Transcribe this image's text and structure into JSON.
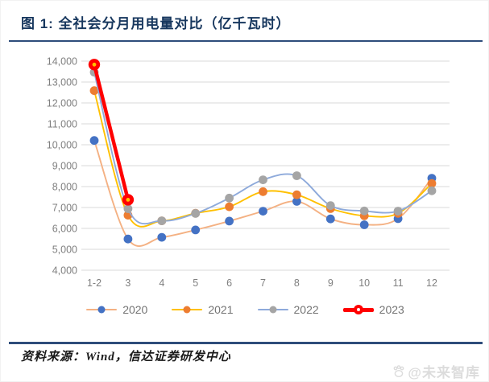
{
  "figure": {
    "title": "图 1:  全社会分月用电量对比（亿千瓦时）",
    "source": "资料来源：Wind，信达证券研发中心",
    "watermark": "@未来智库"
  },
  "colors": {
    "title_navy": "#17375E",
    "rule_navy": "#2E4D7B",
    "grid": "#D9D9D9",
    "axis_text": "#7F7F7F",
    "legend_text": "#737373",
    "watermark_gray": "#DCDCDC",
    "red_marker_core": "#FFC000"
  },
  "chart_data": {
    "type": "line",
    "title": "全社会分月用电量对比（亿千瓦时）",
    "xlabel": "",
    "ylabel": "",
    "categories": [
      "1-2",
      "3",
      "4",
      "5",
      "6",
      "7",
      "8",
      "9",
      "10",
      "11",
      "12"
    ],
    "series": [
      {
        "name": "2020",
        "marker_color": "#4472C4",
        "line_color": "#F4B183",
        "thick": false,
        "values": [
          10203,
          5493,
          5572,
          5926,
          6350,
          6824,
          7294,
          6454,
          6172,
          6467,
          8400
        ]
      },
      {
        "name": "2021",
        "marker_color": "#ED7D31",
        "line_color": "#FFC000",
        "thick": false,
        "values": [
          12588,
          6631,
          6361,
          6724,
          7033,
          7758,
          7607,
          6947,
          6603,
          6718,
          8150
        ]
      },
      {
        "name": "2022",
        "marker_color": "#A5A5A5",
        "line_color": "#8EAADB",
        "thick": false,
        "values": [
          13468,
          6944,
          6362,
          6716,
          7451,
          8324,
          8520,
          7092,
          6834,
          6828,
          7800
        ]
      },
      {
        "name": "2023",
        "marker_color": "#FF0000",
        "line_color": "#FF0000",
        "thick": true,
        "values": [
          13834,
          7369,
          null,
          null,
          null,
          null,
          null,
          null,
          null,
          null,
          null
        ]
      }
    ],
    "ylim": [
      4000,
      14000
    ],
    "ytick_step": 1000,
    "grid": true,
    "legend_position": "bottom"
  }
}
